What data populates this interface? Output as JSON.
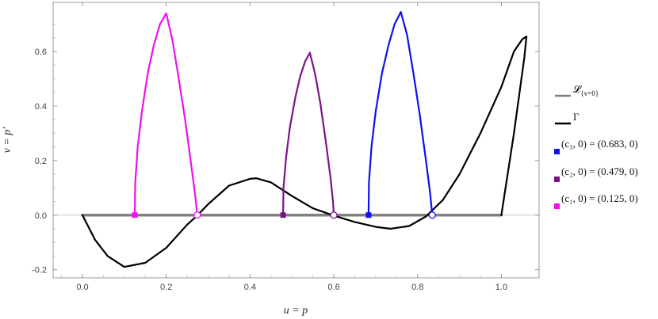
{
  "chart_data": {
    "type": "line",
    "title": "",
    "xlabel": "u = p",
    "ylabel": "v = p′",
    "xlim": [
      -0.07,
      1.09
    ],
    "ylim": [
      -0.23,
      0.78
    ],
    "x_ticks": [
      {
        "value": 0.0,
        "label": "0.0"
      },
      {
        "value": 0.2,
        "label": "0.2"
      },
      {
        "value": 0.4,
        "label": "0.4"
      },
      {
        "value": 0.6,
        "label": "0.6"
      },
      {
        "value": 0.8,
        "label": "0.8"
      },
      {
        "value": 1.0,
        "label": "1.0"
      }
    ],
    "y_ticks": [
      {
        "value": -0.2,
        "label": "-0.2"
      },
      {
        "value": 0.0,
        "label": "0.0"
      },
      {
        "value": 0.2,
        "label": "0.2"
      },
      {
        "value": 0.4,
        "label": "0.4"
      },
      {
        "value": 0.6,
        "label": "0.6"
      }
    ],
    "grid": false,
    "legend_position": "right",
    "colors": {
      "L": "#808080",
      "Gamma": "#000000",
      "c3": "#1010ee",
      "c2": "#7a1486",
      "c1": "#ee10ee"
    },
    "series": [
      {
        "key": "L",
        "name": "𝓛{v=0}",
        "x": [
          0.0,
          1.0
        ],
        "y": [
          0.0,
          0.0
        ]
      },
      {
        "key": "Gamma",
        "name": "Γ",
        "x": [
          0.0,
          0.03,
          0.06,
          0.1,
          0.15,
          0.2,
          0.25,
          0.275,
          0.3,
          0.35,
          0.4,
          0.415,
          0.45,
          0.5,
          0.55,
          0.6,
          0.65,
          0.7,
          0.735,
          0.78,
          0.82,
          0.86,
          0.9,
          0.95,
          1.0,
          1.03,
          1.05,
          1.06,
          1.055,
          1.03,
          1.0
        ],
        "y": [
          0.0,
          -0.09,
          -0.15,
          -0.19,
          -0.175,
          -0.12,
          -0.035,
          0.0,
          0.04,
          0.108,
          0.133,
          0.135,
          0.12,
          0.07,
          0.025,
          -0.002,
          -0.025,
          -0.043,
          -0.05,
          -0.04,
          -0.005,
          0.055,
          0.15,
          0.3,
          0.47,
          0.6,
          0.645,
          0.655,
          0.58,
          0.3,
          0.0
        ]
      },
      {
        "key": "c3",
        "name": "(c3, 0) = (0.683, 0)",
        "x": [
          0.683,
          0.684,
          0.69,
          0.7,
          0.715,
          0.73,
          0.745,
          0.76,
          0.775,
          0.79,
          0.805,
          0.82,
          0.83,
          0.835
        ],
        "y": [
          0.0,
          0.12,
          0.25,
          0.38,
          0.52,
          0.62,
          0.7,
          0.745,
          0.66,
          0.52,
          0.37,
          0.2,
          0.08,
          0.0
        ]
      },
      {
        "key": "c2",
        "name": "(c2, 0) = (0.479, 0)",
        "x": [
          0.479,
          0.48,
          0.486,
          0.495,
          0.508,
          0.52,
          0.532,
          0.543,
          0.555,
          0.568,
          0.58,
          0.592,
          0.598,
          0.6
        ],
        "y": [
          0.0,
          0.1,
          0.21,
          0.32,
          0.43,
          0.51,
          0.565,
          0.595,
          0.52,
          0.41,
          0.28,
          0.14,
          0.05,
          0.0
        ]
      },
      {
        "key": "c1",
        "name": "(c1, 0) = (0.125, 0)",
        "x": [
          0.125,
          0.126,
          0.132,
          0.142,
          0.156,
          0.17,
          0.185,
          0.2,
          0.215,
          0.23,
          0.245,
          0.26,
          0.27,
          0.274
        ],
        "y": [
          0.0,
          0.12,
          0.25,
          0.38,
          0.52,
          0.62,
          0.7,
          0.74,
          0.64,
          0.5,
          0.35,
          0.18,
          0.06,
          0.0
        ]
      }
    ],
    "markers": [
      {
        "series": "c1",
        "x": 0.125,
        "y": 0.0,
        "shape": "filled-square"
      },
      {
        "series": "c1",
        "x": 0.274,
        "y": 0.0,
        "shape": "open-circle"
      },
      {
        "series": "c2",
        "x": 0.479,
        "y": 0.0,
        "shape": "filled-square"
      },
      {
        "series": "c2",
        "x": 0.6,
        "y": 0.0,
        "shape": "open-circle"
      },
      {
        "series": "c3",
        "x": 0.683,
        "y": 0.0,
        "shape": "filled-square"
      },
      {
        "series": "c3",
        "x": 0.835,
        "y": 0.0,
        "shape": "open-circle"
      }
    ],
    "legend": [
      {
        "series": "L",
        "label": "𝓛",
        "sub": "{v=0}",
        "swatch": "line"
      },
      {
        "series": "Gamma",
        "label": "Γ",
        "sub": "",
        "swatch": "line"
      },
      {
        "series": "c3",
        "label": "(c₃, 0) = (0.683, 0)",
        "sub": "",
        "swatch": "square"
      },
      {
        "series": "c2",
        "label": "(c₂, 0) = (0.479, 0)",
        "sub": "",
        "swatch": "square"
      },
      {
        "series": "c1",
        "label": "(c₁, 0) = (0.125, 0)",
        "sub": "",
        "swatch": "square"
      }
    ]
  }
}
